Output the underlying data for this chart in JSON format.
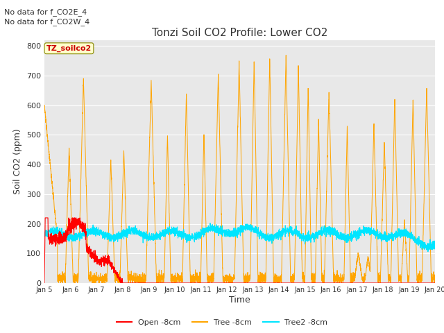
{
  "title": "Tonzi Soil CO2 Profile: Lower CO2",
  "xlabel": "Time",
  "ylabel": "Soil CO2 (ppm)",
  "top_text_1": "No data for f_CO2E_4",
  "top_text_2": "No data for f_CO2W_4",
  "watermark": "TZ_soilco2",
  "ylim": [
    0,
    820
  ],
  "yticks": [
    0,
    100,
    200,
    300,
    400,
    500,
    600,
    700,
    800
  ],
  "xtick_labels": [
    "Jan 5",
    "Jan 6",
    "Jan 7",
    "Jan 8",
    "Jan 9",
    "Jan 10",
    "Jan 11",
    "Jan 12",
    "Jan 13",
    "Jan 14",
    "Jan 15",
    "Jan 16",
    "Jan 17",
    "Jan 18",
    "Jan 19",
    "Jan 20"
  ],
  "bg_color": "#e8e8e8",
  "legend_labels": [
    "Open -8cm",
    "Tree -8cm",
    "Tree2 -8cm"
  ],
  "legend_colors": [
    "#ff0000",
    "#ffa500",
    "#00e5ff"
  ],
  "open_color": "#ff0000",
  "tree_color": "#ffa500",
  "tree2_color": "#00e5ff",
  "fig_width": 6.4,
  "fig_height": 4.8
}
